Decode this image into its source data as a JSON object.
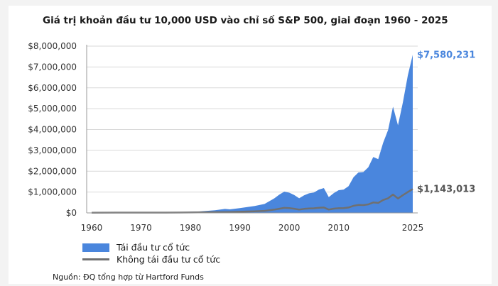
{
  "chart_data": {
    "type": "area",
    "title": "Giá trị khoản đầu tư 10,000 USD vào chỉ số S&P 500, giai đoạn 1960 - 2025",
    "xlabel": "",
    "ylabel": "",
    "xlim": [
      1959,
      2026
    ],
    "ylim": [
      0,
      8000000
    ],
    "y_ticks": [
      "$0",
      "$1,000,000",
      "$2,000,000",
      "$3,000,000",
      "$4,000,000",
      "$5,000,000",
      "$6,000,000",
      "$7,000,000",
      "$8,000,000"
    ],
    "x_ticks": [
      "1960",
      "1970",
      "1980",
      "1990",
      "2000",
      "2010",
      "2025"
    ],
    "grid": true,
    "legend_position": "bottom-left",
    "series": [
      {
        "name": "Tái đầu tư cổ tức",
        "style": "area",
        "color": "#4a86dd",
        "end_label": "$7,580,231",
        "x": [
          1960,
          1965,
          1970,
          1975,
          1980,
          1982,
          1985,
          1987,
          1988,
          1990,
          1993,
          1995,
          1997,
          1998,
          1999,
          2000,
          2001,
          2002,
          2003,
          2004,
          2005,
          2006,
          2007,
          2008,
          2009,
          2010,
          2011,
          2012,
          2013,
          2014,
          2015,
          2016,
          2017,
          2018,
          2019,
          2020,
          2021,
          2022,
          2023,
          2024,
          2025
        ],
        "values": [
          10000,
          18000,
          24000,
          28000,
          55000,
          70000,
          130000,
          190000,
          170000,
          230000,
          330000,
          430000,
          700000,
          880000,
          1020000,
          970000,
          860000,
          700000,
          840000,
          940000,
          980000,
          1120000,
          1190000,
          760000,
          950000,
          1090000,
          1120000,
          1280000,
          1710000,
          1940000,
          1960000,
          2190000,
          2680000,
          2580000,
          3360000,
          3980000,
          5100000,
          4200000,
          5300000,
          6600000,
          7580231
        ]
      },
      {
        "name": "Không tái đầu tư cổ tức",
        "style": "line",
        "color": "#707070",
        "end_label": "$1,143,013",
        "x": [
          1960,
          1965,
          1970,
          1975,
          1980,
          1985,
          1988,
          1990,
          1993,
          1995,
          1997,
          1998,
          1999,
          2000,
          2001,
          2002,
          2003,
          2004,
          2005,
          2006,
          2007,
          2008,
          2009,
          2010,
          2011,
          2012,
          2013,
          2014,
          2015,
          2016,
          2017,
          2018,
          2019,
          2020,
          2021,
          2022,
          2023,
          2024,
          2025
        ],
        "values": [
          10000,
          14000,
          15000,
          14000,
          20000,
          33000,
          44000,
          55000,
          75000,
          100000,
          160000,
          200000,
          240000,
          230000,
          200000,
          160000,
          195000,
          210000,
          220000,
          245000,
          260000,
          160000,
          205000,
          225000,
          230000,
          260000,
          340000,
          380000,
          375000,
          410000,
          500000,
          480000,
          620000,
          700000,
          880000,
          690000,
          850000,
          1000000,
          1143013
        ]
      }
    ]
  },
  "source": "Nguồn: ĐQ tổng hợp từ Hartford Funds"
}
